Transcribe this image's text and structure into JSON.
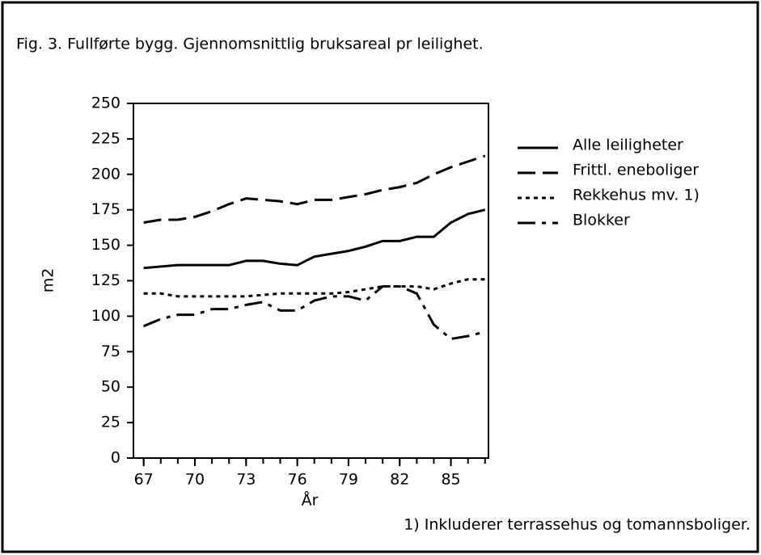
{
  "chart_data": {
    "type": "line",
    "title": "Fig. 3. Fullførte bygg. Gjennomsnittlig bruksareal pr leilighet.",
    "x_label": "År",
    "y_label": "m2",
    "footnote": "1) Inkluderer terrassehus og tomannsboliger.",
    "x": [
      67,
      68,
      69,
      70,
      71,
      72,
      73,
      74,
      75,
      76,
      77,
      78,
      79,
      80,
      81,
      82,
      83,
      84,
      85,
      86,
      87
    ],
    "series": [
      {
        "name": "Alle leiligheter",
        "color": "#000000",
        "dash": "solid",
        "values": [
          134,
          135,
          136,
          136,
          136,
          136,
          139,
          139,
          137,
          136,
          142,
          144,
          146,
          149,
          153,
          153,
          156,
          156,
          166,
          172,
          175
        ]
      },
      {
        "name": "Frittl. eneboliger",
        "color": "#000000",
        "dash": "dashed",
        "values": [
          166,
          168,
          168,
          170,
          174,
          179,
          183,
          182,
          181,
          179,
          182,
          182,
          184,
          186,
          189,
          191,
          194,
          200,
          205,
          209,
          213
        ]
      },
      {
        "name": "Rekkehus mv. 1)",
        "color": "#000000",
        "dash": "dotted",
        "values": [
          116,
          116,
          114,
          114,
          114,
          114,
          114,
          115,
          116,
          116,
          116,
          116,
          117,
          119,
          121,
          121,
          121,
          119,
          123,
          126,
          126
        ]
      },
      {
        "name": "Blokker",
        "color": "#000000",
        "dash": "dashdot",
        "values": [
          93,
          98,
          101,
          101,
          105,
          105,
          108,
          110,
          104,
          104,
          111,
          114,
          114,
          111,
          121,
          121,
          116,
          94,
          84,
          86,
          89
        ]
      }
    ],
    "xlim": [
      66.4,
      87.2
    ],
    "xticks": [
      67,
      70,
      73,
      76,
      79,
      82,
      85
    ],
    "ylim": [
      0,
      250
    ],
    "yticks": [
      0,
      25,
      50,
      75,
      100,
      125,
      150,
      175,
      200,
      225,
      250
    ],
    "grid": false,
    "legend": "right"
  }
}
